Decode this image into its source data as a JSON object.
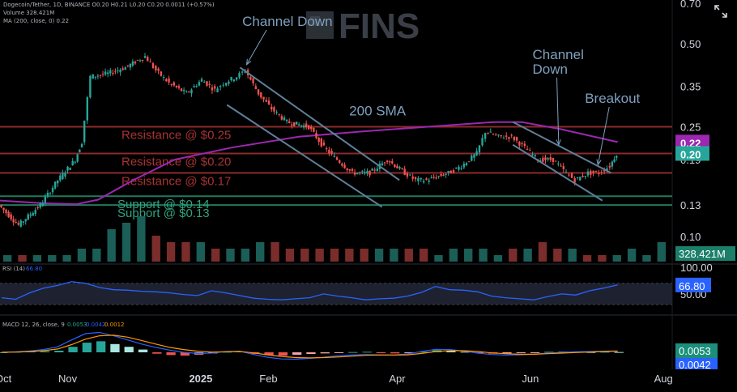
{
  "header": {
    "line1": "Dogecoin/Tether, 1D, BINANCE  O0.20  H0.21  L0.20  C0.20  0.0011 (+0.57%)",
    "line2": "Volume  328.421M",
    "line3": "MA (200, close, 0)  0.22"
  },
  "watermark": "FINS",
  "icons": [
    "expand-icon",
    "watermark-logo-icon"
  ],
  "colors": {
    "background": "#000000",
    "up": "#26a69a",
    "down": "#ef5350",
    "sma": "#9c27b0",
    "rsi": "#2962ff",
    "macd": "#2962ff",
    "signal": "#ff9800",
    "annotation": "#6b8fb0",
    "resistance": "#8b2a2a",
    "support": "#1f7a5c"
  },
  "chart_data": [
    {
      "type": "candlestick",
      "pair": "Dogecoin/Tether",
      "timeframe": "1D",
      "exchange": "BINANCE",
      "price_axis": {
        "ticks": [
          "0.70",
          "0.50",
          "0.35",
          "0.25",
          "0.19",
          "0.13",
          "0.10"
        ],
        "scale": "log",
        "ylim": [
          0.08,
          0.72
        ]
      },
      "x_axis": {
        "ticks": [
          "Oct",
          "Nov",
          "2025",
          "Feb",
          "Apr",
          "Jun",
          "Aug"
        ],
        "range": [
          "2024-10-01",
          "2025-08-05"
        ]
      },
      "price_path": [
        [
          "2024-10-01",
          0.13
        ],
        [
          "2024-10-10",
          0.11
        ],
        [
          "2024-10-20",
          0.13
        ],
        [
          "2024-10-28",
          0.16
        ],
        [
          "2024-11-05",
          0.19
        ],
        [
          "2024-11-08",
          0.22
        ],
        [
          "2024-11-12",
          0.38
        ],
        [
          "2024-11-20",
          0.39
        ],
        [
          "2024-11-28",
          0.41
        ],
        [
          "2024-12-07",
          0.45
        ],
        [
          "2024-12-12",
          0.4
        ],
        [
          "2024-12-18",
          0.36
        ],
        [
          "2024-12-26",
          0.33
        ],
        [
          "2025-01-02",
          0.37
        ],
        [
          "2025-01-08",
          0.34
        ],
        [
          "2025-01-12",
          0.36
        ],
        [
          "2025-01-18",
          0.38
        ],
        [
          "2025-01-22",
          0.4
        ],
        [
          "2025-01-28",
          0.33
        ],
        [
          "2025-02-03",
          0.29
        ],
        [
          "2025-02-10",
          0.26
        ],
        [
          "2025-02-20",
          0.25
        ],
        [
          "2025-02-27",
          0.21
        ],
        [
          "2025-03-05",
          0.19
        ],
        [
          "2025-03-12",
          0.17
        ],
        [
          "2025-03-20",
          0.17
        ],
        [
          "2025-03-28",
          0.19
        ],
        [
          "2025-04-05",
          0.17
        ],
        [
          "2025-04-10",
          0.16
        ],
        [
          "2025-04-15",
          0.16
        ],
        [
          "2025-04-25",
          0.17
        ],
        [
          "2025-05-01",
          0.18
        ],
        [
          "2025-05-08",
          0.2
        ],
        [
          "2025-05-12",
          0.24
        ],
        [
          "2025-05-18",
          0.23
        ],
        [
          "2025-05-24",
          0.23
        ],
        [
          "2025-05-30",
          0.21
        ],
        [
          "2025-06-05",
          0.19
        ],
        [
          "2025-06-12",
          0.19
        ],
        [
          "2025-06-18",
          0.17
        ],
        [
          "2025-06-22",
          0.16
        ],
        [
          "2025-06-28",
          0.17
        ],
        [
          "2025-07-03",
          0.17
        ],
        [
          "2025-07-08",
          0.18
        ],
        [
          "2025-07-11",
          0.2
        ]
      ],
      "sma_200": [
        [
          "2024-10-01",
          0.135
        ],
        [
          "2024-10-20",
          0.132
        ],
        [
          "2024-11-05",
          0.131
        ],
        [
          "2024-11-15",
          0.136
        ],
        [
          "2024-12-01",
          0.16
        ],
        [
          "2024-12-20",
          0.19
        ],
        [
          "2025-01-15",
          0.21
        ],
        [
          "2025-02-15",
          0.23
        ],
        [
          "2025-03-15",
          0.24
        ],
        [
          "2025-04-15",
          0.25
        ],
        [
          "2025-05-15",
          0.26
        ],
        [
          "2025-05-28",
          0.26
        ],
        [
          "2025-06-15",
          0.245
        ],
        [
          "2025-07-11",
          0.22
        ]
      ],
      "levels": [
        {
          "label": "Resistance @ $0.25",
          "value": 0.25,
          "kind": "resistance"
        },
        {
          "label": "Resistance @ $0.20",
          "value": 0.2,
          "kind": "resistance"
        },
        {
          "label": "Resistance @ $0.17",
          "value": 0.17,
          "kind": "resistance"
        },
        {
          "label": "Support @ $0.14",
          "value": 0.14,
          "kind": "support"
        },
        {
          "label": "Support @ $0.13",
          "value": 0.13,
          "kind": "support"
        }
      ],
      "channels": [
        {
          "upper": [
            [
              "2025-01-19",
              0.41
            ],
            [
              "2025-04-02",
              0.16
            ]
          ],
          "lower": [
            [
              "2025-01-13",
              0.3
            ],
            [
              "2025-03-25",
              0.128
            ]
          ]
        },
        {
          "upper": [
            [
              "2025-05-24",
              0.26
            ],
            [
              "2025-07-08",
              0.17
            ]
          ],
          "lower": [
            [
              "2025-05-24",
              0.215
            ],
            [
              "2025-07-04",
              0.135
            ]
          ]
        }
      ],
      "annotations": [
        {
          "text": "Channel Down",
          "x": "2025-01-20",
          "y": 0.58,
          "arrow_to": [
            "2025-01-22",
            0.42
          ]
        },
        {
          "text": "200 SMA",
          "x": "2025-03-10",
          "y": 0.275
        },
        {
          "text": "Channel\nDown",
          "x": "2025-06-02",
          "y": 0.44,
          "arrow_to": [
            "2025-06-14",
            0.215
          ]
        },
        {
          "text": "Breakout",
          "x": "2025-06-26",
          "y": 0.305,
          "arrow_to": [
            "2025-07-02",
            0.182
          ]
        }
      ],
      "price_badges": [
        {
          "text": "0.22",
          "value": 0.22,
          "color": "#9c27b0"
        },
        {
          "text": "0.20",
          "value": 0.2,
          "color": "#26a69a"
        }
      ]
    },
    {
      "type": "bar",
      "name": "Volume",
      "current": "328.421M",
      "values_relative": [
        1,
        1,
        1,
        1,
        1,
        2,
        2,
        5,
        6,
        7,
        4,
        3,
        3,
        3,
        2,
        2,
        2,
        3,
        3,
        2,
        2,
        2,
        2,
        2,
        2,
        2,
        2,
        2,
        2,
        1,
        2,
        2,
        2,
        1,
        2,
        2,
        3,
        2,
        2,
        1,
        1,
        1,
        2,
        1,
        3
      ]
    },
    {
      "type": "line",
      "name": "RSI (14)",
      "value": "66.80",
      "axis_ticks": [
        "100.00",
        "50.00"
      ],
      "band": [
        30,
        70
      ],
      "values": [
        43,
        40,
        52,
        61,
        66,
        73,
        70,
        62,
        58,
        57,
        55,
        54,
        52,
        49,
        47,
        56,
        52,
        47,
        42,
        40,
        39,
        41,
        43,
        50,
        46,
        43,
        39,
        41,
        42,
        46,
        53,
        64,
        58,
        57,
        54,
        46,
        43,
        41,
        39,
        45,
        50,
        48,
        56,
        61,
        67
      ]
    },
    {
      "type": "histogram",
      "name": "MACD",
      "params": "12, 26, close, 9",
      "values_shown": [
        "0.0053",
        "0.0042",
        "0.0012"
      ],
      "histogram": [
        0,
        0.002,
        0.003,
        0.004,
        0.006,
        0.02,
        0.035,
        0.04,
        0.03,
        0.02,
        0.01,
        -0.005,
        -0.01,
        -0.012,
        -0.008,
        -0.004,
        0.002,
        0.003,
        -0.006,
        -0.01,
        -0.012,
        -0.009,
        -0.006,
        -0.004,
        -0.002,
        0.001,
        0.002,
        -0.002,
        -0.004,
        -0.003,
        0.002,
        0.008,
        0.006,
        0.002,
        -0.003,
        -0.005,
        -0.004,
        -0.003,
        -0.002,
        0.002,
        0.003,
        0.002,
        0.001,
        0.002,
        0.001
      ],
      "macd_line": [
        0,
        0.002,
        0.005,
        0.01,
        0.02,
        0.045,
        0.068,
        0.072,
        0.06,
        0.045,
        0.03,
        0.018,
        0.008,
        0,
        -0.004,
        -0.003,
        0.003,
        0.004,
        -0.008,
        -0.018,
        -0.024,
        -0.025,
        -0.022,
        -0.018,
        -0.013,
        -0.01,
        -0.008,
        -0.009,
        -0.01,
        -0.006,
        0.003,
        0.011,
        0.01,
        0.005,
        -0.003,
        -0.008,
        -0.01,
        -0.009,
        -0.007,
        -0.003,
        0,
        0.002,
        0.003,
        0.004,
        0.0053
      ],
      "signal_line": [
        0,
        0.001,
        0.003,
        0.006,
        0.012,
        0.028,
        0.048,
        0.06,
        0.062,
        0.055,
        0.043,
        0.03,
        0.018,
        0.01,
        0.004,
        0.001,
        0.002,
        0.003,
        -0.002,
        -0.009,
        -0.015,
        -0.019,
        -0.02,
        -0.019,
        -0.017,
        -0.014,
        -0.011,
        -0.01,
        -0.01,
        -0.009,
        -0.004,
        0.003,
        0.006,
        0.006,
        0.003,
        -0.002,
        -0.005,
        -0.007,
        -0.007,
        -0.005,
        -0.003,
        -0.001,
        0.001,
        0.003,
        0.0042
      ]
    }
  ]
}
